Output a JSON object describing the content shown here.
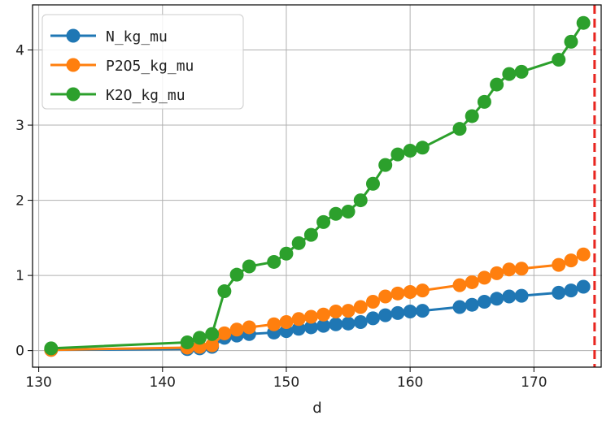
{
  "chart_data": {
    "type": "line",
    "title": "",
    "xlabel": "d",
    "ylabel": "",
    "xlim": [
      129.5,
      175.5
    ],
    "ylim": [
      -0.22,
      4.6
    ],
    "xticks": [
      130,
      140,
      150,
      160,
      170
    ],
    "yticks": [
      0,
      1,
      2,
      3,
      4
    ],
    "grid": true,
    "legend_position": "top-left",
    "vline": {
      "x": 174.9,
      "color": "#e8251f",
      "style": "dashed"
    },
    "series": [
      {
        "name": "N_kg_mu",
        "color": "#1f77b4",
        "x": [
          131,
          142,
          143,
          144,
          145,
          146,
          147,
          149,
          150,
          151,
          152,
          153,
          154,
          155,
          156,
          157,
          158,
          159,
          160,
          161,
          164,
          165,
          166,
          167,
          168,
          169,
          172,
          173,
          174
        ],
        "y": [
          0.01,
          0.02,
          0.03,
          0.05,
          0.17,
          0.2,
          0.22,
          0.24,
          0.26,
          0.29,
          0.31,
          0.33,
          0.35,
          0.36,
          0.38,
          0.43,
          0.47,
          0.5,
          0.52,
          0.53,
          0.58,
          0.61,
          0.65,
          0.69,
          0.72,
          0.73,
          0.77,
          0.8,
          0.85
        ]
      },
      {
        "name": "P2O5_kg_mu",
        "color": "#ff7f0e",
        "x": [
          131,
          142,
          143,
          144,
          145,
          146,
          147,
          149,
          150,
          151,
          152,
          153,
          154,
          155,
          156,
          157,
          158,
          159,
          160,
          161,
          164,
          165,
          166,
          167,
          168,
          169,
          172,
          173,
          174
        ],
        "y": [
          0.01,
          0.04,
          0.05,
          0.07,
          0.23,
          0.28,
          0.31,
          0.35,
          0.38,
          0.42,
          0.45,
          0.48,
          0.52,
          0.53,
          0.58,
          0.65,
          0.72,
          0.76,
          0.78,
          0.8,
          0.87,
          0.91,
          0.97,
          1.03,
          1.08,
          1.09,
          1.14,
          1.2,
          1.28
        ]
      },
      {
        "name": "K2O_kg_mu",
        "color": "#2ca02c",
        "x": [
          131,
          142,
          143,
          144,
          145,
          146,
          147,
          149,
          150,
          151,
          152,
          153,
          154,
          155,
          156,
          157,
          158,
          159,
          160,
          161,
          164,
          165,
          166,
          167,
          168,
          169,
          172,
          173,
          174
        ],
        "y": [
          0.03,
          0.11,
          0.17,
          0.22,
          0.79,
          1.01,
          1.12,
          1.18,
          1.29,
          1.43,
          1.54,
          1.71,
          1.82,
          1.85,
          2.0,
          2.22,
          2.47,
          2.61,
          2.66,
          2.7,
          2.95,
          3.12,
          3.31,
          3.54,
          3.68,
          3.71,
          3.87,
          4.11,
          4.36
        ]
      }
    ]
  }
}
